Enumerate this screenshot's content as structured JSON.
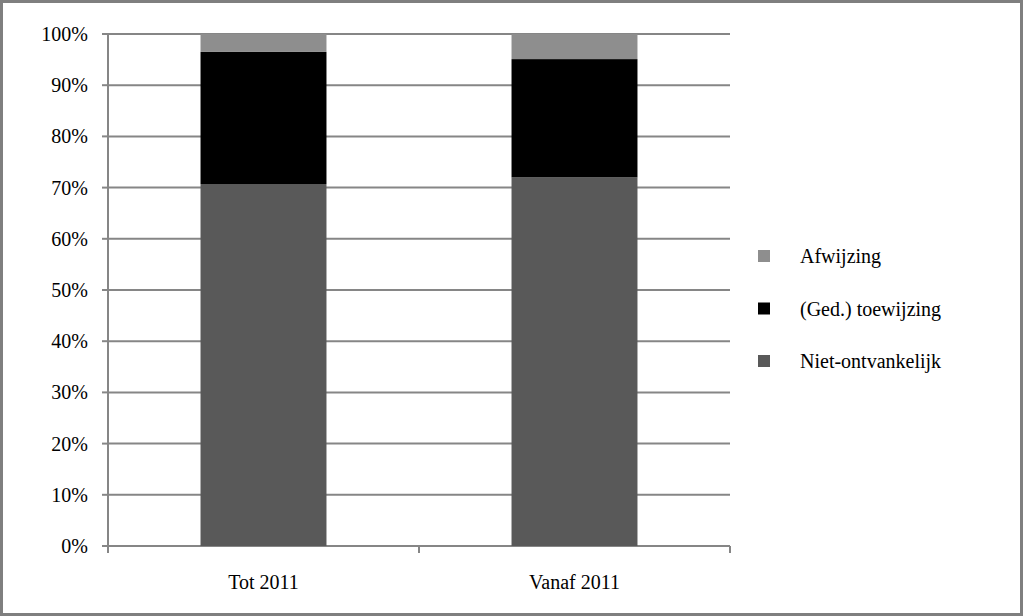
{
  "chart_data": {
    "type": "bar",
    "stacked": true,
    "grid": true,
    "legend": "right",
    "categories": [
      "Tot 2011",
      "Vanaf 2011"
    ],
    "series": [
      {
        "name": "Niet-ontvankelijk",
        "color": "#595959",
        "values": [
          70.7,
          72.0
        ]
      },
      {
        "name": "(Ged.) toewijzing",
        "color": "#000000",
        "values": [
          25.8,
          23.1
        ]
      },
      {
        "name": "Afwijzing",
        "color": "#8e8e8e",
        "values": [
          3.5,
          4.9
        ]
      }
    ],
    "ylim": [
      0,
      100
    ],
    "yticks": [
      {
        "value": 0,
        "label": "0%"
      },
      {
        "value": 10,
        "label": "10%"
      },
      {
        "value": 20,
        "label": "20%"
      },
      {
        "value": 30,
        "label": "30%"
      },
      {
        "value": 40,
        "label": "40%"
      },
      {
        "value": 50,
        "label": "50%"
      },
      {
        "value": 60,
        "label": "60%"
      },
      {
        "value": 70,
        "label": "70%"
      },
      {
        "value": 80,
        "label": "80%"
      },
      {
        "value": 90,
        "label": "90%"
      },
      {
        "value": 100,
        "label": "100%"
      }
    ]
  }
}
